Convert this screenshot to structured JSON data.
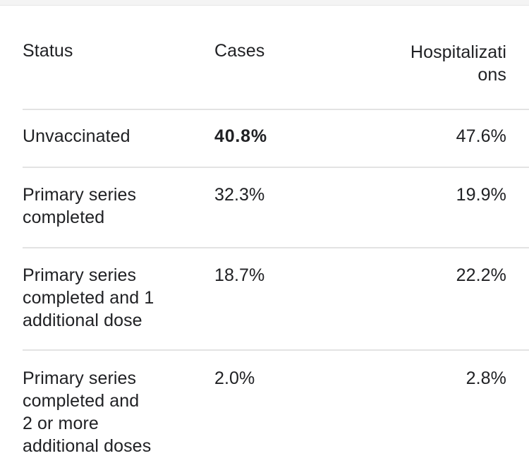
{
  "table": {
    "headers": {
      "status": "Status",
      "cases": "Cases",
      "hospitalizations_line1": "Hospitalizati",
      "hospitalizations_line2": "ons"
    },
    "rows": [
      {
        "status_lines": [
          "Unvaccinated"
        ],
        "cases": "40.8%",
        "cases_bold": true,
        "hospitalizations": "47.6%"
      },
      {
        "status_lines": [
          "Primary series",
          "completed"
        ],
        "cases": "32.3%",
        "hospitalizations": "19.9%"
      },
      {
        "status_lines": [
          "Primary series",
          "completed and 1",
          "additional dose"
        ],
        "cases": "18.7%",
        "hospitalizations": "22.2%"
      },
      {
        "status_lines": [
          "Primary series",
          "completed and",
          "2 or more",
          "additional doses"
        ],
        "cases": "2.0%",
        "hospitalizations": "2.8%"
      }
    ]
  }
}
